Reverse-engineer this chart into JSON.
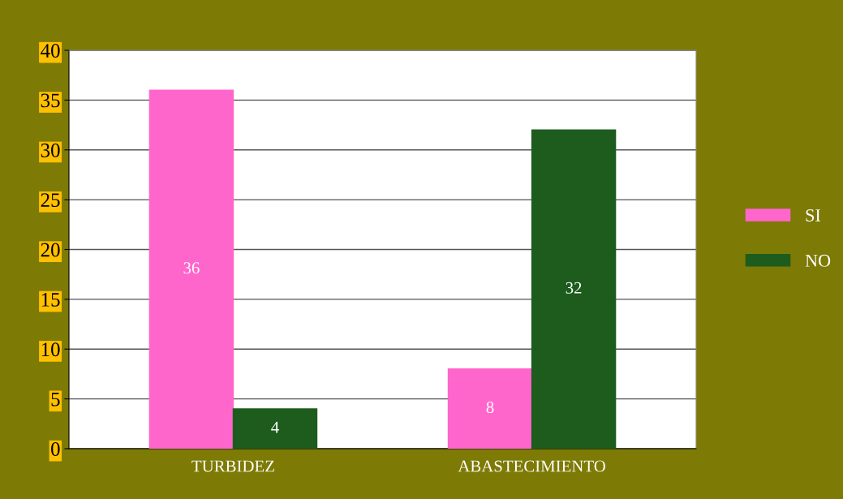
{
  "chart_data": {
    "type": "bar",
    "categories": [
      "TURBIDEZ",
      "ABASTECIMIENTO"
    ],
    "series": [
      {
        "name": "SI",
        "color": "#ff66cc",
        "values": [
          36,
          8
        ]
      },
      {
        "name": "NO",
        "color": "#1e5c1e",
        "values": [
          4,
          32
        ]
      }
    ],
    "ylim": [
      0,
      40
    ],
    "yticks": [
      0,
      5,
      10,
      15,
      20,
      25,
      30,
      35,
      40
    ],
    "grid": "y",
    "legend": "right",
    "data_labels": true
  }
}
